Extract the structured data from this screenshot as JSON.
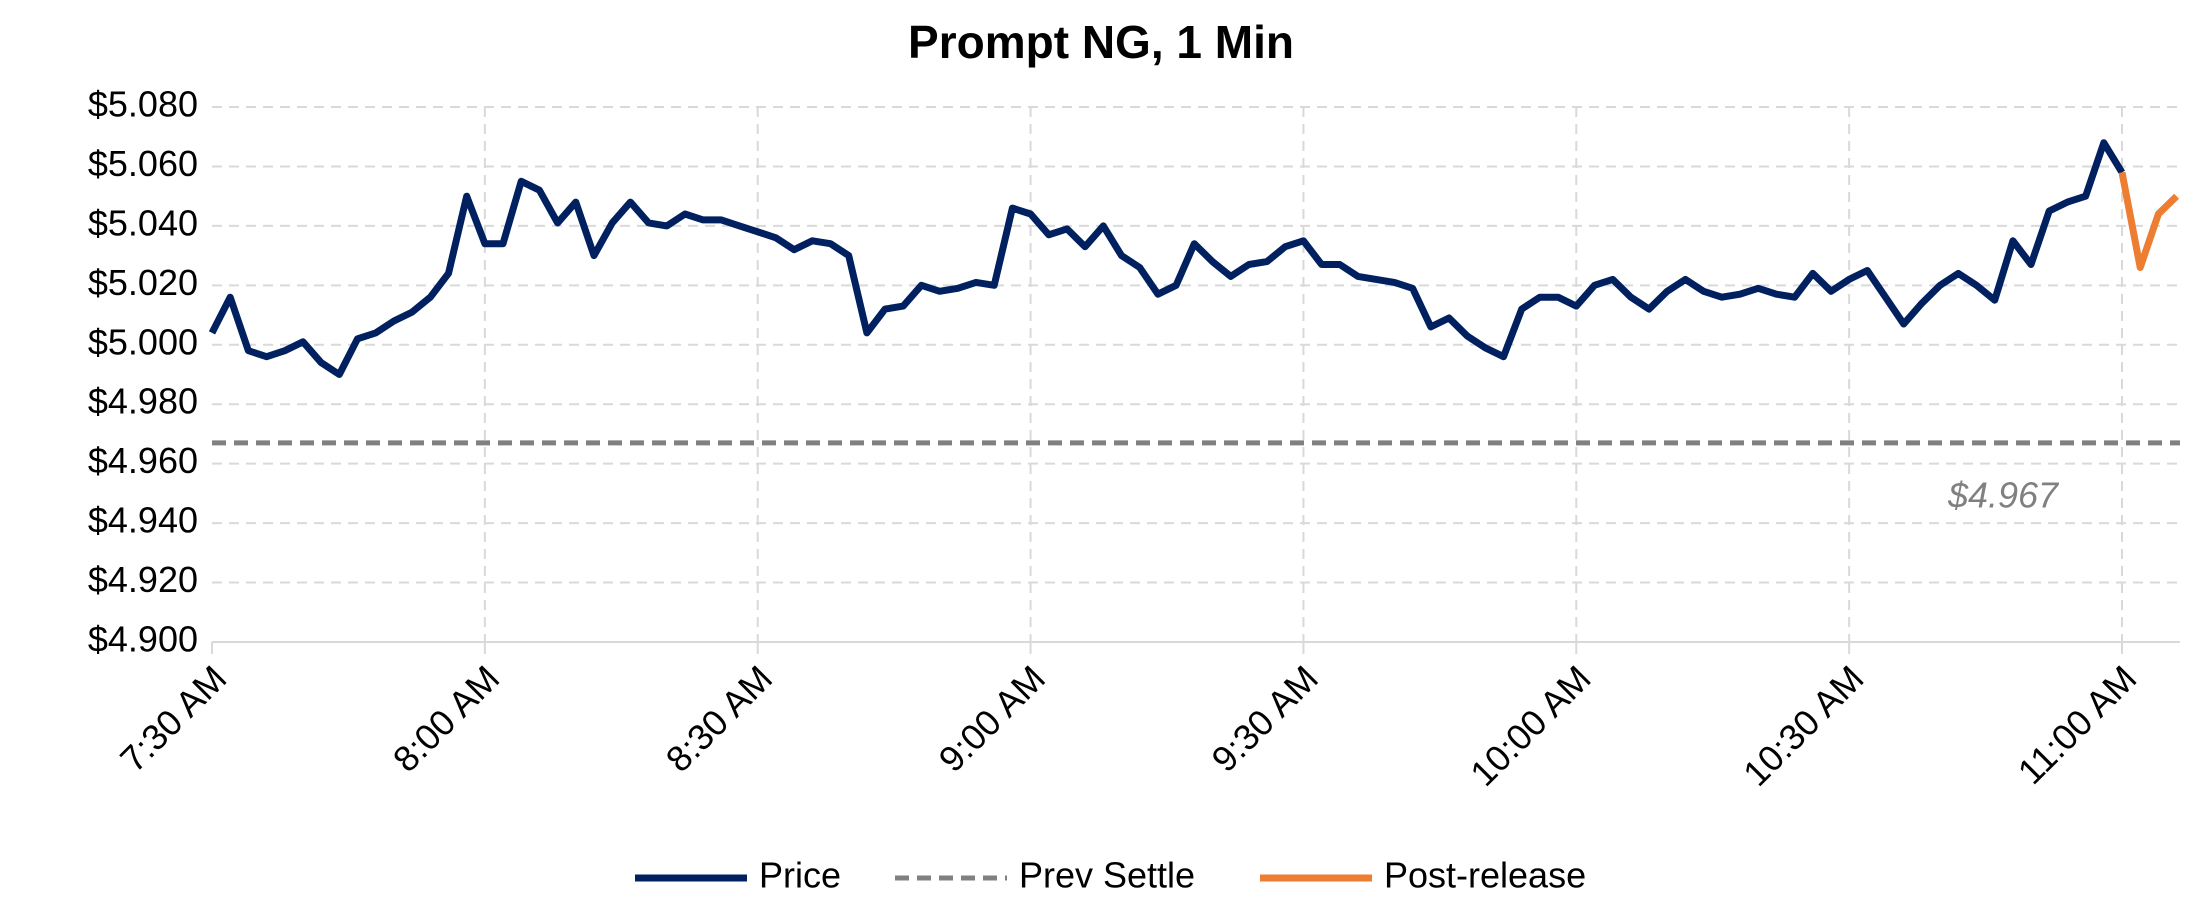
{
  "chart_data": {
    "type": "line",
    "title": "Prompt NG, 1 Min",
    "x": [
      "7:30 AM",
      "7:32 AM",
      "7:34 AM",
      "7:36 AM",
      "7:38 AM",
      "7:40 AM",
      "7:42 AM",
      "7:44 AM",
      "7:46 AM",
      "7:48 AM",
      "7:50 AM",
      "7:52 AM",
      "7:54 AM",
      "7:56 AM",
      "7:58 AM",
      "8:00 AM",
      "8:02 AM",
      "8:04 AM",
      "8:06 AM",
      "8:08 AM",
      "8:10 AM",
      "8:12 AM",
      "8:14 AM",
      "8:16 AM",
      "8:18 AM",
      "8:20 AM",
      "8:22 AM",
      "8:24 AM",
      "8:26 AM",
      "8:28 AM",
      "8:30 AM",
      "8:32 AM",
      "8:34 AM",
      "8:36 AM",
      "8:38 AM",
      "8:40 AM",
      "8:42 AM",
      "8:44 AM",
      "8:46 AM",
      "8:48 AM",
      "8:50 AM",
      "8:52 AM",
      "8:54 AM",
      "8:56 AM",
      "8:58 AM",
      "9:00 AM",
      "9:02 AM",
      "9:04 AM",
      "9:06 AM",
      "9:08 AM",
      "9:10 AM",
      "9:12 AM",
      "9:14 AM",
      "9:16 AM",
      "9:18 AM",
      "9:20 AM",
      "9:22 AM",
      "9:24 AM",
      "9:26 AM",
      "9:28 AM",
      "9:30 AM",
      "9:32 AM",
      "9:34 AM",
      "9:36 AM",
      "9:38 AM",
      "9:40 AM",
      "9:42 AM",
      "9:44 AM",
      "9:46 AM",
      "9:48 AM",
      "9:50 AM",
      "9:52 AM",
      "9:54 AM",
      "9:56 AM",
      "9:58 AM",
      "10:00 AM",
      "10:02 AM",
      "10:04 AM",
      "10:06 AM",
      "10:08 AM",
      "10:10 AM",
      "10:12 AM",
      "10:14 AM",
      "10:16 AM",
      "10:18 AM",
      "10:20 AM",
      "10:22 AM",
      "10:24 AM",
      "10:26 AM",
      "10:28 AM",
      "10:30 AM",
      "10:32 AM",
      "10:34 AM",
      "10:36 AM",
      "10:38 AM",
      "10:40 AM",
      "10:42 AM",
      "10:44 AM",
      "10:46 AM",
      "10:48 AM",
      "10:50 AM",
      "10:52 AM",
      "10:54 AM",
      "10:56 AM",
      "10:58 AM",
      "11:00 AM",
      "11:02 AM",
      "11:04 AM",
      "11:06 AM"
    ],
    "xticks": [
      "7:30 AM",
      "8:00 AM",
      "8:30 AM",
      "9:00 AM",
      "9:30 AM",
      "10:00 AM",
      "10:30 AM",
      "11:00 AM"
    ],
    "series": [
      {
        "name": "Price",
        "color": "#002060",
        "values": [
          5.004,
          5.016,
          4.998,
          4.996,
          4.998,
          5.001,
          4.994,
          4.99,
          5.002,
          5.004,
          5.008,
          5.011,
          5.016,
          5.024,
          5.05,
          5.034,
          5.034,
          5.055,
          5.052,
          5.041,
          5.048,
          5.03,
          5.041,
          5.048,
          5.041,
          5.04,
          5.044,
          5.042,
          5.042,
          5.04,
          5.038,
          5.036,
          5.032,
          5.035,
          5.034,
          5.03,
          5.004,
          5.012,
          5.013,
          5.02,
          5.018,
          5.019,
          5.021,
          5.02,
          5.046,
          5.044,
          5.037,
          5.039,
          5.033,
          5.04,
          5.03,
          5.026,
          5.017,
          5.02,
          5.034,
          5.028,
          5.023,
          5.027,
          5.028,
          5.033,
          5.035,
          5.027,
          5.027,
          5.023,
          5.022,
          5.021,
          5.019,
          5.006,
          5.009,
          5.003,
          4.999,
          4.996,
          5.012,
          5.016,
          5.016,
          5.013,
          5.02,
          5.022,
          5.016,
          5.012,
          5.018,
          5.022,
          5.018,
          5.016,
          5.017,
          5.019,
          5.017,
          5.016,
          5.024,
          5.018,
          5.022,
          5.025,
          5.016,
          5.007,
          5.014,
          5.02,
          5.024,
          5.02,
          5.015,
          5.035,
          5.027,
          5.045,
          5.048,
          5.05,
          5.068,
          5.058,
          null,
          null,
          null
        ]
      },
      {
        "name": "Post-release",
        "color": "#ed7d31",
        "values": [
          null,
          null,
          null,
          null,
          null,
          null,
          null,
          null,
          null,
          null,
          null,
          null,
          null,
          null,
          null,
          null,
          null,
          null,
          null,
          null,
          null,
          null,
          null,
          null,
          null,
          null,
          null,
          null,
          null,
          null,
          null,
          null,
          null,
          null,
          null,
          null,
          null,
          null,
          null,
          null,
          null,
          null,
          null,
          null,
          null,
          null,
          null,
          null,
          null,
          null,
          null,
          null,
          null,
          null,
          null,
          null,
          null,
          null,
          null,
          null,
          null,
          null,
          null,
          null,
          null,
          null,
          null,
          null,
          null,
          null,
          null,
          null,
          null,
          null,
          null,
          null,
          null,
          null,
          null,
          null,
          null,
          null,
          null,
          null,
          null,
          null,
          null,
          null,
          null,
          null,
          null,
          null,
          null,
          null,
          null,
          null,
          null,
          null,
          null,
          null,
          null,
          null,
          null,
          null,
          null,
          5.058,
          5.026,
          5.044,
          5.05
        ]
      }
    ],
    "reference_line": {
      "name": "Prev Settle",
      "color": "#808080",
      "value": 4.967,
      "value_label": "$4.967"
    },
    "ylim": [
      4.9,
      5.08
    ],
    "yticks": [
      {
        "value": 4.9,
        "label": "$4.900"
      },
      {
        "value": 4.92,
        "label": "$4.920"
      },
      {
        "value": 4.94,
        "label": "$4.940"
      },
      {
        "value": 4.96,
        "label": "$4.960"
      },
      {
        "value": 4.98,
        "label": "$4.980"
      },
      {
        "value": 5.0,
        "label": "$5.000"
      },
      {
        "value": 5.02,
        "label": "$5.020"
      },
      {
        "value": 5.04,
        "label": "$5.040"
      },
      {
        "value": 5.06,
        "label": "$5.060"
      },
      {
        "value": 5.08,
        "label": "$5.080"
      }
    ],
    "grid": true,
    "legend": "bottom"
  }
}
